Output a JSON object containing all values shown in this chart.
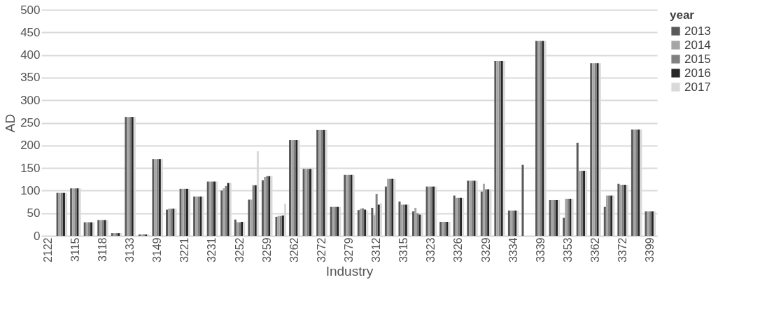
{
  "chart_data": {
    "type": "bar",
    "xlabel": "Industry",
    "ylabel": "AD",
    "legend_title": "year",
    "legend": "right",
    "grid": "y",
    "ylim": [
      0,
      500
    ],
    "yticks": [
      0,
      50,
      100,
      150,
      200,
      250,
      300,
      350,
      400,
      450,
      500
    ],
    "categories": [
      "2122",
      null,
      "3115",
      null,
      "3118",
      null,
      "3133",
      null,
      "3149",
      null,
      "3221",
      null,
      "3231",
      null,
      "3252",
      null,
      "3259",
      null,
      "3262",
      null,
      "3272",
      null,
      "3279",
      null,
      "3312",
      null,
      "3315",
      null,
      "3323",
      null,
      "3326",
      null,
      "3329",
      null,
      "3334",
      null,
      "3339",
      null,
      "3353",
      null,
      "3362",
      null,
      "3372",
      null,
      "3399"
    ],
    "series": [
      {
        "name": "2013",
        "color": "#595959",
        "values": [
          0,
          95,
          105,
          30,
          35,
          6,
          263,
          3,
          170,
          58,
          104,
          87,
          120,
          100,
          36,
          80,
          123,
          42,
          212,
          148,
          234,
          64,
          135,
          57,
          62,
          109,
          76,
          54,
          109,
          31,
          89,
          122,
          98,
          387,
          56,
          157,
          431,
          79,
          40,
          206,
          382,
          64,
          115,
          235,
          54
        ]
      },
      {
        "name": "2014",
        "color": "#a6a6a6",
        "values": [
          0,
          95,
          105,
          30,
          35,
          6,
          263,
          3,
          170,
          60,
          104,
          87,
          120,
          105,
          30,
          80,
          130,
          44,
          212,
          148,
          234,
          64,
          135,
          60,
          46,
          126,
          69,
          62,
          109,
          31,
          84,
          122,
          115,
          387,
          56,
          0,
          431,
          79,
          82,
          144,
          382,
          89,
          113,
          235,
          54
        ]
      },
      {
        "name": "2015",
        "color": "#808080",
        "values": [
          0,
          95,
          105,
          30,
          35,
          6,
          263,
          3,
          170,
          60,
          104,
          87,
          120,
          110,
          30,
          112,
          132,
          44,
          212,
          148,
          234,
          64,
          135,
          61,
          93,
          126,
          69,
          50,
          109,
          31,
          84,
          122,
          103,
          387,
          56,
          0,
          431,
          79,
          82,
          144,
          382,
          89,
          113,
          235,
          54
        ]
      },
      {
        "name": "2016",
        "color": "#262626",
        "values": [
          0,
          95,
          105,
          30,
          35,
          6,
          263,
          3,
          170,
          60,
          104,
          87,
          120,
          117,
          31,
          112,
          132,
          45,
          212,
          148,
          234,
          64,
          135,
          58,
          69,
          126,
          69,
          47,
          109,
          31,
          84,
          122,
          103,
          387,
          56,
          0,
          431,
          79,
          82,
          144,
          382,
          89,
          113,
          235,
          54
        ]
      },
      {
        "name": "2017",
        "color": "#d9d9d9",
        "values": [
          0,
          95,
          105,
          30,
          35,
          6,
          263,
          3,
          170,
          60,
          104,
          87,
          120,
          117,
          31,
          187,
          132,
          71,
          212,
          148,
          234,
          64,
          135,
          55,
          72,
          126,
          69,
          47,
          109,
          31,
          84,
          122,
          103,
          387,
          56,
          0,
          431,
          79,
          82,
          144,
          382,
          89,
          113,
          235,
          54
        ]
      }
    ]
  }
}
